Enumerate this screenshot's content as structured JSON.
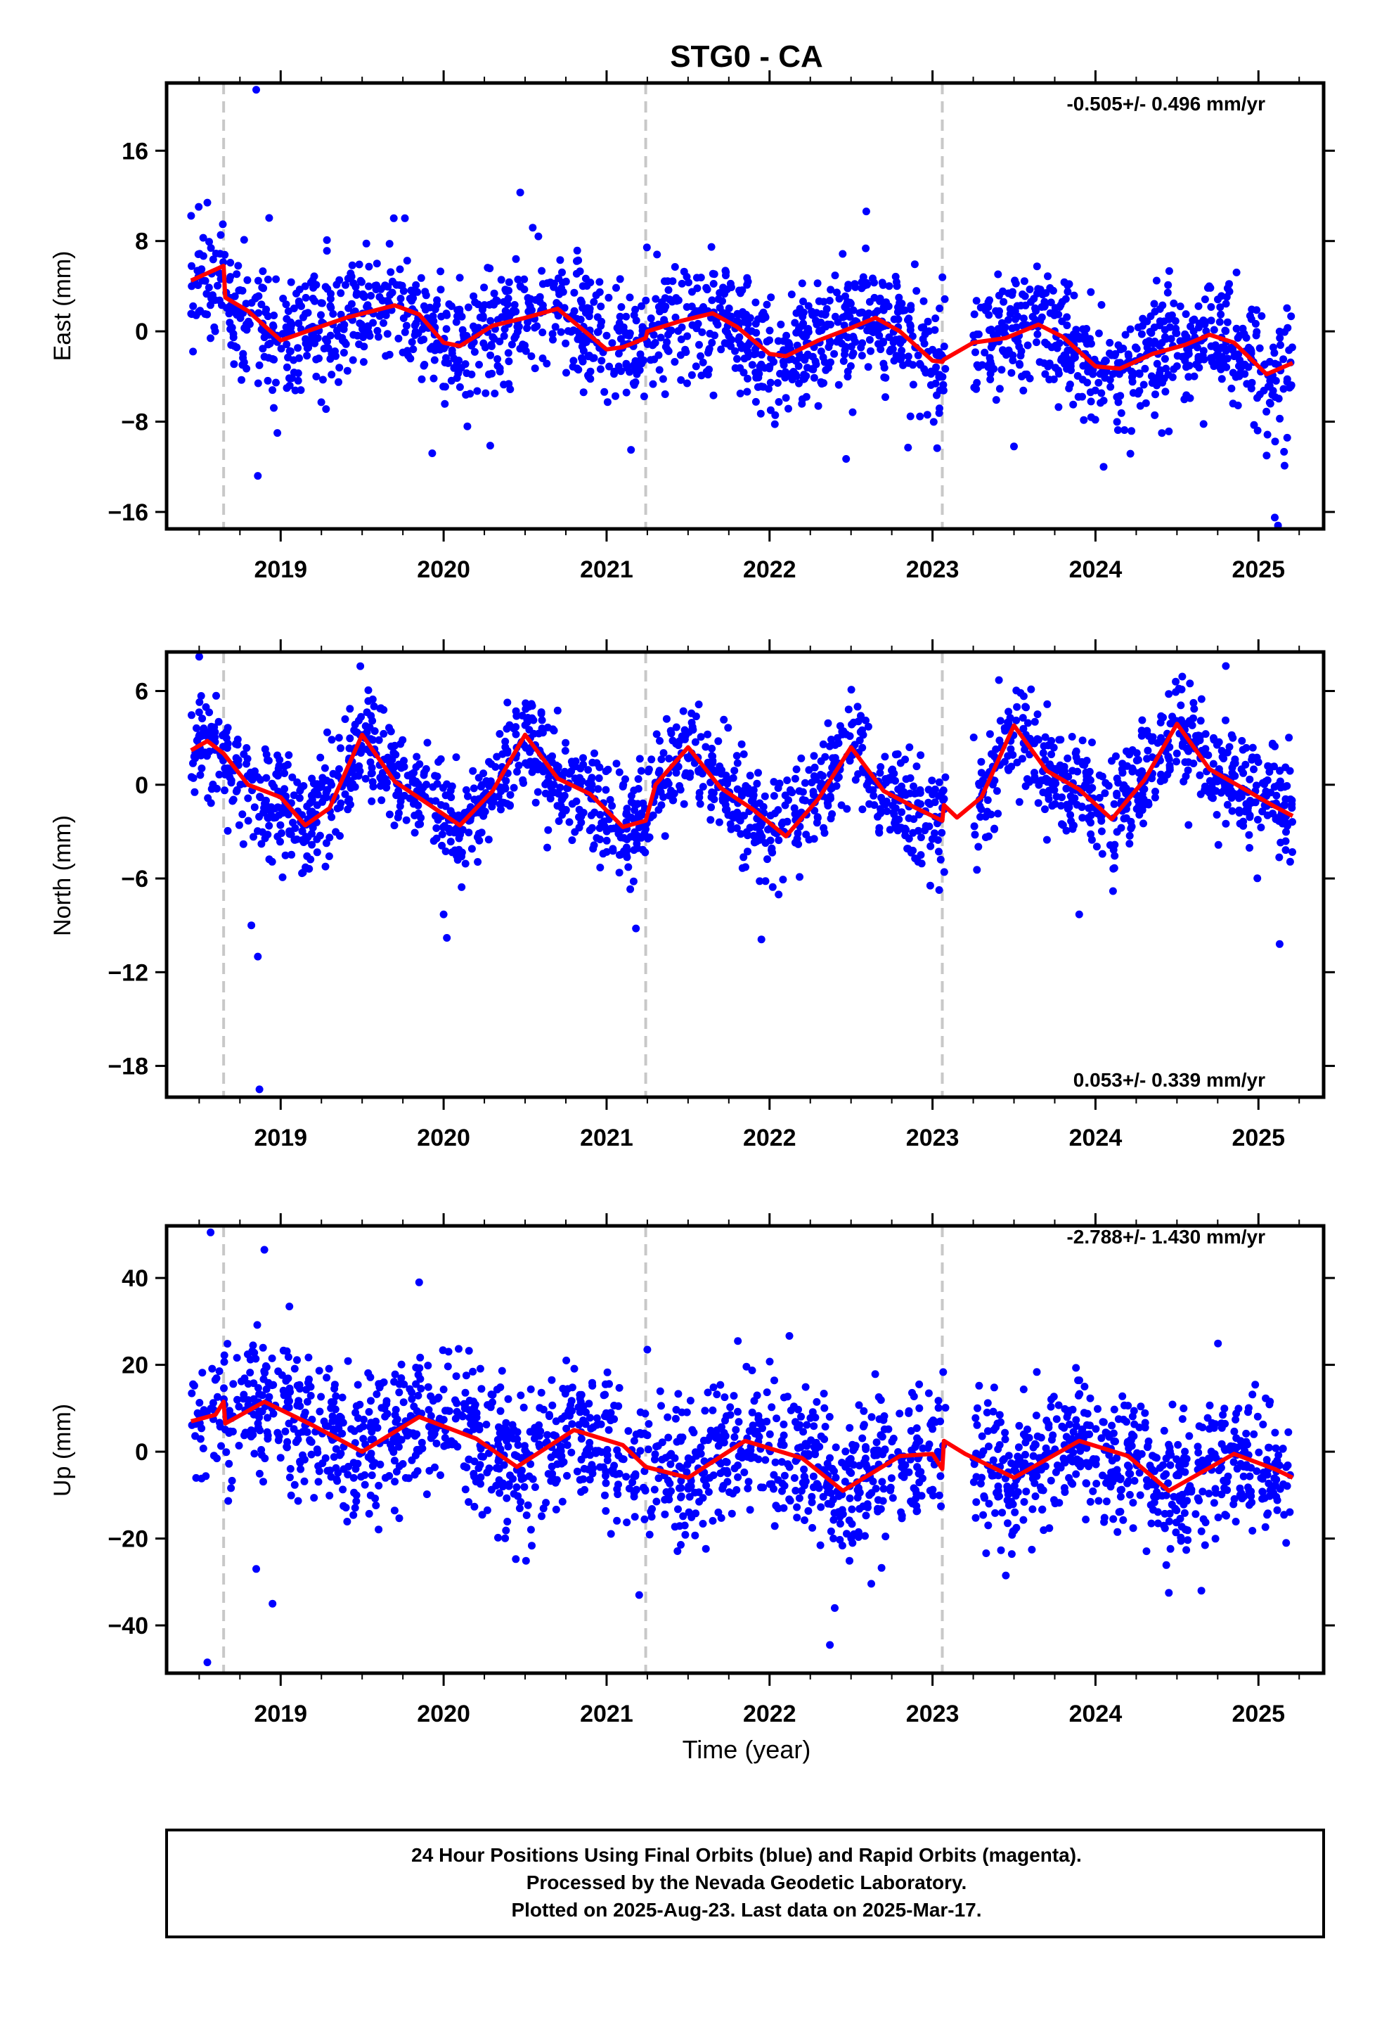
{
  "title": "STG0 - CA",
  "xlabel": "Time (year)",
  "caption": [
    "24 Hour Positions Using Final Orbits (blue) and Rapid Orbits (magenta).",
    "Processed by the Nevada Geodetic Laboratory.",
    "Plotted on 2025-Aug-23. Last data on 2025-Mar-17."
  ],
  "colors": {
    "points": "#0000ff",
    "model": "#ff0000",
    "steps": "#c8c8c8",
    "frame": "#000000"
  },
  "chart_data": [
    {
      "type": "scatter",
      "ylabel": "East (mm)",
      "rate": "-0.505+/- 0.496 mm/yr",
      "rate_position": "top-right",
      "xlim": [
        2018.3,
        2025.4
      ],
      "ylim": [
        -17.5,
        22
      ],
      "yticks": [
        16,
        8,
        0,
        -8,
        -16
      ],
      "ytick_labels": [
        "16",
        "8",
        "0",
        "−8",
        "−16"
      ],
      "xticks": [
        2019,
        2020,
        2021,
        2022,
        2023,
        2024,
        2025
      ],
      "xtick_labels": [
        "2019",
        "2020",
        "2021",
        "2022",
        "2023",
        "2024",
        "2025"
      ],
      "step_epochs": [
        2018.65,
        2021.24,
        2023.06
      ],
      "data_start": 2018.45,
      "data_end": 2025.21,
      "data_gap": [
        2023.08,
        2023.25
      ],
      "scatter_sigma": 2.6,
      "model": {
        "x": [
          2018.45,
          2018.65,
          2018.66,
          2018.8,
          2019.0,
          2019.2,
          2019.4,
          2019.7,
          2019.85,
          2020.0,
          2020.1,
          2020.3,
          2020.5,
          2020.7,
          2020.85,
          2021.0,
          2021.1,
          2021.24,
          2021.25,
          2021.45,
          2021.65,
          2021.8,
          2022.0,
          2022.1,
          2022.3,
          2022.5,
          2022.65,
          2022.8,
          2023.0,
          2023.06,
          2023.07,
          2023.25,
          2023.45,
          2023.65,
          2023.8,
          2024.0,
          2024.15,
          2024.35,
          2024.55,
          2024.7,
          2024.85,
          2025.05,
          2025.21
        ],
        "y": [
          4.5,
          5.8,
          3.0,
          1.8,
          -0.8,
          0.2,
          1.2,
          2.3,
          1.5,
          -1.0,
          -1.3,
          0.5,
          1.2,
          2.0,
          0.2,
          -1.6,
          -1.4,
          -0.6,
          0.0,
          0.9,
          1.6,
          0.4,
          -2.0,
          -2.2,
          -0.8,
          0.3,
          1.2,
          0.0,
          -2.6,
          -2.7,
          -2.5,
          -1.0,
          -0.6,
          0.6,
          -0.5,
          -3.1,
          -3.3,
          -2.0,
          -1.2,
          -0.3,
          -1.0,
          -3.8,
          -2.8
        ]
      },
      "outliers": [
        {
          "x": 2018.85,
          "y": 21.4
        },
        {
          "x": 2018.86,
          "y": -12.8
        },
        {
          "x": 2018.98,
          "y": -9.0
        },
        {
          "x": 2019.93,
          "y": -10.8
        },
        {
          "x": 2020.47,
          "y": 12.3
        },
        {
          "x": 2021.15,
          "y": -10.5
        },
        {
          "x": 2022.47,
          "y": -11.3
        },
        {
          "x": 2022.85,
          "y": -10.3
        },
        {
          "x": 2023.5,
          "y": -10.2
        },
        {
          "x": 2024.05,
          "y": -12.0
        },
        {
          "x": 2025.1,
          "y": -16.5
        },
        {
          "x": 2025.12,
          "y": -17.2
        },
        {
          "x": 2025.05,
          "y": -11.0
        },
        {
          "x": 2025.16,
          "y": -11.9
        }
      ]
    },
    {
      "type": "scatter",
      "ylabel": "North (mm)",
      "rate": "0.053+/- 0.339 mm/yr",
      "rate_position": "bottom-right",
      "xlim": [
        2018.3,
        2025.4
      ],
      "ylim": [
        -20,
        8.5
      ],
      "yticks": [
        6,
        0,
        -6,
        -12,
        -18
      ],
      "ytick_labels": [
        "6",
        "0",
        "−6",
        "−12",
        "−18"
      ],
      "xticks": [
        2019,
        2020,
        2021,
        2022,
        2023,
        2024,
        2025
      ],
      "xtick_labels": [
        "2019",
        "2020",
        "2021",
        "2022",
        "2023",
        "2024",
        "2025"
      ],
      "step_epochs": [
        2018.65,
        2021.24,
        2023.06
      ],
      "data_start": 2018.45,
      "data_end": 2025.21,
      "data_gap": [
        2023.08,
        2023.25
      ],
      "scatter_sigma": 1.7,
      "model": {
        "x": [
          2018.45,
          2018.55,
          2018.65,
          2018.8,
          2019.0,
          2019.15,
          2019.3,
          2019.5,
          2019.7,
          2019.9,
          2020.1,
          2020.3,
          2020.5,
          2020.7,
          2020.9,
          2021.1,
          2021.24,
          2021.3,
          2021.5,
          2021.7,
          2021.9,
          2022.1,
          2022.3,
          2022.5,
          2022.7,
          2022.9,
          2023.06,
          2023.07,
          2023.15,
          2023.3,
          2023.5,
          2023.7,
          2023.9,
          2024.1,
          2024.3,
          2024.5,
          2024.7,
          2024.9,
          2025.1,
          2025.21
        ],
        "y": [
          2.2,
          2.8,
          2.0,
          0.0,
          -0.8,
          -2.6,
          -1.5,
          3.2,
          0.2,
          -1.2,
          -2.6,
          -0.4,
          3.2,
          0.4,
          -0.6,
          -2.7,
          -2.3,
          0.0,
          2.4,
          -0.2,
          -1.6,
          -3.3,
          -0.9,
          2.4,
          -0.4,
          -1.5,
          -2.3,
          -1.3,
          -2.1,
          -0.8,
          3.8,
          0.9,
          -0.3,
          -2.2,
          0.3,
          3.9,
          1.0,
          -0.2,
          -1.4,
          -2.0
        ]
      },
      "outliers": [
        {
          "x": 2018.82,
          "y": -9.0
        },
        {
          "x": 2018.86,
          "y": -11.0
        },
        {
          "x": 2018.87,
          "y": -19.5
        },
        {
          "x": 2020.0,
          "y": -8.3
        },
        {
          "x": 2020.02,
          "y": -9.8
        },
        {
          "x": 2021.18,
          "y": -9.2
        },
        {
          "x": 2021.95,
          "y": -9.9
        },
        {
          "x": 2023.9,
          "y": -8.3
        },
        {
          "x": 2025.13,
          "y": -10.2
        },
        {
          "x": 2018.5,
          "y": 8.2
        },
        {
          "x": 2024.8,
          "y": 7.6
        }
      ]
    },
    {
      "type": "scatter",
      "ylabel": "Up (mm)",
      "rate": "-2.788+/- 1.430 mm/yr",
      "rate_position": "top-right",
      "xlim": [
        2018.3,
        2025.4
      ],
      "ylim": [
        -51,
        52
      ],
      "yticks": [
        40,
        20,
        0,
        -20,
        -40
      ],
      "ytick_labels": [
        "40",
        "20",
        "0",
        "−20",
        "−40"
      ],
      "xticks": [
        2019,
        2020,
        2021,
        2022,
        2023,
        2024,
        2025
      ],
      "xtick_labels": [
        "2019",
        "2020",
        "2021",
        "2022",
        "2023",
        "2024",
        "2025"
      ],
      "step_epochs": [
        2018.65,
        2021.24,
        2023.06
      ],
      "data_start": 2018.45,
      "data_end": 2025.21,
      "data_gap": [
        2023.08,
        2023.25
      ],
      "scatter_sigma": 8.0,
      "model": {
        "x": [
          2018.45,
          2018.6,
          2018.65,
          2018.66,
          2018.9,
          2019.2,
          2019.5,
          2019.85,
          2020.2,
          2020.45,
          2020.8,
          2021.1,
          2021.24,
          2021.5,
          2021.85,
          2022.2,
          2022.45,
          2022.8,
          2023.0,
          2023.06,
          2023.07,
          2023.2,
          2023.5,
          2023.9,
          2024.2,
          2024.45,
          2024.85,
          2025.1,
          2025.21
        ],
        "y": [
          7.0,
          8.5,
          11.5,
          6.5,
          11.5,
          6.0,
          0.0,
          8.0,
          3.0,
          -3.5,
          5.0,
          1.5,
          -3.5,
          -6.0,
          2.5,
          -1.5,
          -9.0,
          -1.0,
          -0.5,
          -4.0,
          2.5,
          -0.5,
          -6.0,
          2.5,
          -1.0,
          -9.0,
          -0.5,
          -4.0,
          -6.0
        ]
      },
      "outliers": [
        {
          "x": 2018.55,
          "y": -48.5
        },
        {
          "x": 2018.57,
          "y": 50.5
        },
        {
          "x": 2018.9,
          "y": 46.5
        },
        {
          "x": 2019.85,
          "y": 39.0
        },
        {
          "x": 2018.85,
          "y": -27.0
        },
        {
          "x": 2018.95,
          "y": -35.0
        },
        {
          "x": 2021.2,
          "y": -33.0
        },
        {
          "x": 2022.37,
          "y": -44.5
        },
        {
          "x": 2022.4,
          "y": -36.0
        },
        {
          "x": 2023.45,
          "y": -28.5
        },
        {
          "x": 2024.45,
          "y": -32.5
        },
        {
          "x": 2024.65,
          "y": -32.0
        },
        {
          "x": 2025.17,
          "y": -21.0
        },
        {
          "x": 2021.25,
          "y": 23.5
        }
      ]
    }
  ]
}
